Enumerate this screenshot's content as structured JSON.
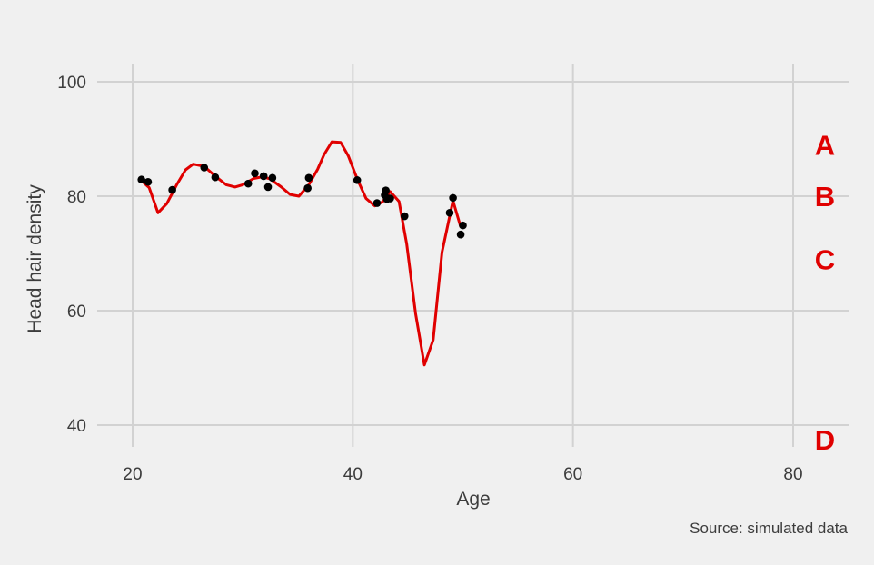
{
  "chart_data": {
    "type": "scatter",
    "xlabel": "Age",
    "ylabel": "Head hair density",
    "caption": "Source: simulated data",
    "xlim": [
      16.5,
      85
    ],
    "ylim": [
      35.5,
      103.5
    ],
    "x_ticks": [
      20,
      40,
      60,
      80
    ],
    "y_ticks": [
      40,
      60,
      80,
      100
    ],
    "grid": true,
    "colors": {
      "points": "#000000",
      "line": "#e00000",
      "letters": "#e00000",
      "grid": "#d2d2d2",
      "background": "#f0f0f0"
    },
    "points": [
      {
        "x": 20.8,
        "y": 82.9
      },
      {
        "x": 21.4,
        "y": 82.5
      },
      {
        "x": 23.6,
        "y": 81.1
      },
      {
        "x": 26.5,
        "y": 85.0
      },
      {
        "x": 27.5,
        "y": 83.3
      },
      {
        "x": 30.5,
        "y": 82.2
      },
      {
        "x": 31.1,
        "y": 84.0
      },
      {
        "x": 31.9,
        "y": 83.5
      },
      {
        "x": 32.3,
        "y": 81.6
      },
      {
        "x": 32.7,
        "y": 83.2
      },
      {
        "x": 35.9,
        "y": 81.4
      },
      {
        "x": 36.0,
        "y": 83.2
      },
      {
        "x": 40.4,
        "y": 82.8
      },
      {
        "x": 42.2,
        "y": 78.8
      },
      {
        "x": 42.9,
        "y": 80.2
      },
      {
        "x": 43.0,
        "y": 81.0
      },
      {
        "x": 43.1,
        "y": 79.5
      },
      {
        "x": 43.4,
        "y": 79.6
      },
      {
        "x": 44.7,
        "y": 76.5
      },
      {
        "x": 48.8,
        "y": 77.1
      },
      {
        "x": 49.1,
        "y": 79.7
      },
      {
        "x": 49.8,
        "y": 73.3
      },
      {
        "x": 50.0,
        "y": 74.9
      }
    ],
    "fit_line": [
      {
        "x": 20.8,
        "y": 82.7
      },
      {
        "x": 21.5,
        "y": 81.5
      },
      {
        "x": 22.3,
        "y": 77.1
      },
      {
        "x": 23.1,
        "y": 78.7
      },
      {
        "x": 24.0,
        "y": 82.0
      },
      {
        "x": 24.8,
        "y": 84.6
      },
      {
        "x": 25.5,
        "y": 85.6
      },
      {
        "x": 26.5,
        "y": 85.2
      },
      {
        "x": 27.5,
        "y": 83.5
      },
      {
        "x": 28.5,
        "y": 82.0
      },
      {
        "x": 29.3,
        "y": 81.6
      },
      {
        "x": 30.0,
        "y": 82.0
      },
      {
        "x": 31.0,
        "y": 83.1
      },
      {
        "x": 31.8,
        "y": 83.4
      },
      {
        "x": 32.5,
        "y": 83.0
      },
      {
        "x": 33.5,
        "y": 81.6
      },
      {
        "x": 34.3,
        "y": 80.3
      },
      {
        "x": 35.1,
        "y": 80.0
      },
      {
        "x": 36.0,
        "y": 82.0
      },
      {
        "x": 36.8,
        "y": 84.7
      },
      {
        "x": 37.4,
        "y": 87.3
      },
      {
        "x": 38.1,
        "y": 89.5
      },
      {
        "x": 38.9,
        "y": 89.4
      },
      {
        "x": 39.6,
        "y": 87.0
      },
      {
        "x": 40.4,
        "y": 83.0
      },
      {
        "x": 41.2,
        "y": 79.6
      },
      {
        "x": 42.0,
        "y": 78.3
      },
      {
        "x": 42.7,
        "y": 79.0
      },
      {
        "x": 43.4,
        "y": 80.8
      },
      {
        "x": 44.2,
        "y": 79.1
      },
      {
        "x": 44.9,
        "y": 71.6
      },
      {
        "x": 45.7,
        "y": 59.5
      },
      {
        "x": 46.5,
        "y": 50.5
      },
      {
        "x": 47.3,
        "y": 54.9
      },
      {
        "x": 48.1,
        "y": 70.2
      },
      {
        "x": 49.1,
        "y": 79.2
      },
      {
        "x": 49.8,
        "y": 74.6
      }
    ],
    "annotations": [
      {
        "label": "A",
        "y": 89
      },
      {
        "label": "B",
        "y": 80
      },
      {
        "label": "C",
        "y": 69
      },
      {
        "label": "D",
        "y": 37.5
      }
    ]
  }
}
